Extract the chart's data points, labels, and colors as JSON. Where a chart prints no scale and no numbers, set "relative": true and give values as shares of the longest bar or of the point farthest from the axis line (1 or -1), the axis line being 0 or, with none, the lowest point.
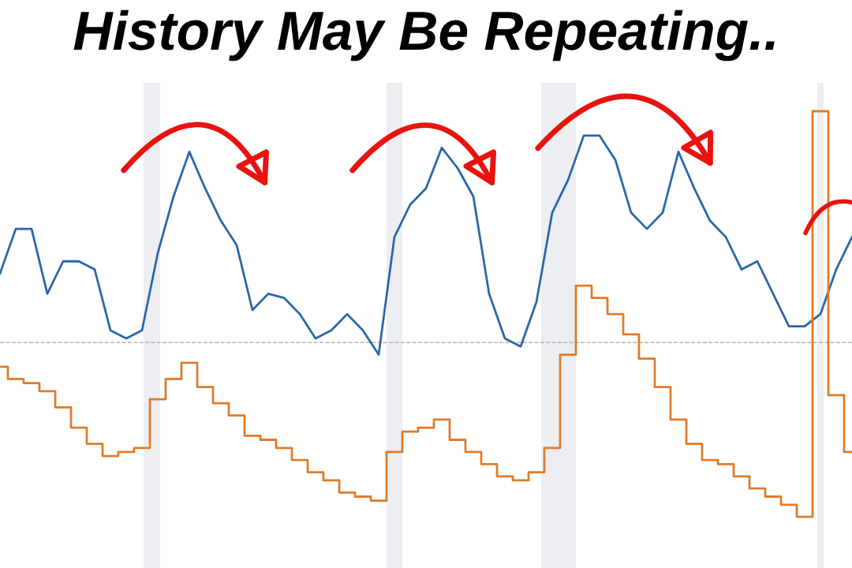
{
  "chart_data": {
    "type": "line",
    "title": "History May Be Repeating..",
    "relative": true,
    "grid": false,
    "categories": [
      null,
      null,
      null,
      null,
      null,
      null,
      null,
      null,
      null,
      null,
      null,
      null,
      null,
      null,
      null,
      null,
      null,
      null,
      null,
      null,
      null,
      null,
      null,
      null,
      null,
      null,
      null,
      null,
      null,
      null,
      null,
      null,
      null,
      null,
      null,
      null,
      null,
      null,
      null,
      null,
      null,
      null,
      null,
      null,
      null,
      null,
      null,
      null,
      null,
      null,
      null,
      null,
      null,
      null,
      null
    ],
    "series": [
      {
        "color": "#2a66ad",
        "values": [
          0.6,
          0.71,
          0.71,
          0.55,
          0.63,
          0.63,
          0.61,
          0.46,
          0.44,
          0.46,
          0.65,
          0.79,
          0.9,
          0.81,
          0.73,
          0.67,
          0.51,
          0.55,
          0.54,
          0.5,
          0.44,
          0.46,
          0.5,
          0.46,
          0.4,
          0.69,
          0.77,
          0.81,
          0.91,
          0.86,
          0.79,
          0.55,
          0.44,
          0.42,
          0.53,
          0.75,
          0.83,
          0.94,
          0.94,
          0.88,
          0.75,
          0.71,
          0.75,
          0.9,
          0.81,
          0.73,
          0.69,
          0.61,
          0.63,
          0.55,
          0.47,
          0.47,
          0.5,
          0.61,
          0.69
        ]
      },
      {
        "color": "#e07b2a",
        "type": "step",
        "values": [
          0.37,
          0.34,
          0.33,
          0.31,
          0.27,
          0.22,
          0.18,
          0.15,
          0.16,
          0.17,
          0.29,
          0.34,
          0.38,
          0.32,
          0.28,
          0.25,
          0.2,
          0.19,
          0.17,
          0.14,
          0.11,
          0.09,
          0.06,
          0.05,
          0.04,
          0.16,
          0.21,
          0.22,
          0.24,
          0.19,
          0.16,
          0.13,
          0.1,
          0.09,
          0.11,
          0.17,
          0.4,
          0.57,
          0.54,
          0.5,
          0.45,
          0.39,
          0.32,
          0.24,
          0.18,
          0.14,
          0.13,
          0.1,
          0.07,
          0.05,
          0.03,
          0,
          1,
          0.3,
          0.16
        ]
      }
    ],
    "ref_lines": [
      {
        "axis": "y",
        "value": 0.43,
        "color": "#a6a6a6",
        "line_style": "dashed"
      }
    ]
  }
}
